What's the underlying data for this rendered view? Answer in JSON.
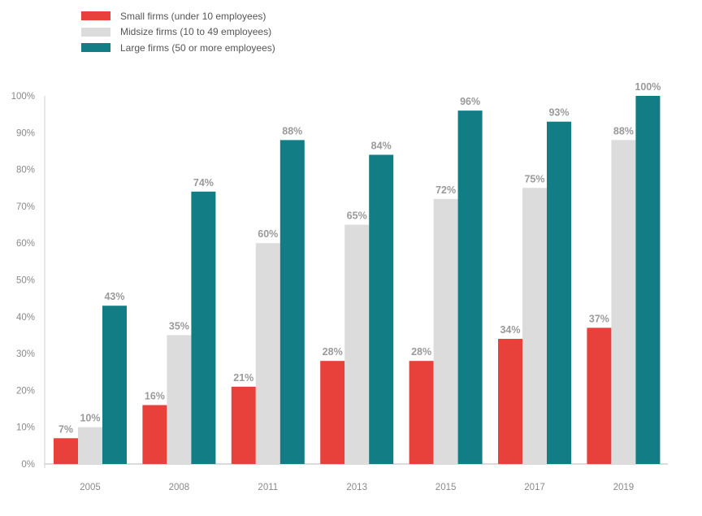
{
  "chart_data": {
    "type": "bar",
    "title": "",
    "xlabel": "",
    "ylabel": "",
    "ylim": [
      0,
      100
    ],
    "yticks": [
      "0%",
      "10%",
      "20%",
      "30%",
      "40%",
      "50%",
      "60%",
      "70%",
      "80%",
      "90%",
      "100%"
    ],
    "categories": [
      "2005",
      "2008",
      "2011",
      "2013",
      "2015",
      "2017",
      "2019"
    ],
    "series": [
      {
        "name": "Small firms (under 10 employees)",
        "color": "#e8403a",
        "values": [
          7,
          16,
          21,
          28,
          28,
          34,
          37
        ],
        "labels": [
          "7%",
          "16%",
          "21%",
          "28%",
          "28%",
          "34%",
          "37%"
        ]
      },
      {
        "name": "Midsize firms (10 to 49 employees)",
        "color": "#dcdcdc",
        "values": [
          10,
          35,
          60,
          65,
          72,
          75,
          88
        ],
        "labels": [
          "10%",
          "35%",
          "60%",
          "65%",
          "72%",
          "75%",
          "88%"
        ]
      },
      {
        "name": "Large firms (50 or more employees)",
        "color": "#127d85",
        "values": [
          43,
          74,
          88,
          84,
          96,
          93,
          100
        ],
        "labels": [
          "43%",
          "74%",
          "88%",
          "84%",
          "96%",
          "93%",
          "100%"
        ]
      }
    ],
    "legend_position": "top-left",
    "grid": false
  }
}
